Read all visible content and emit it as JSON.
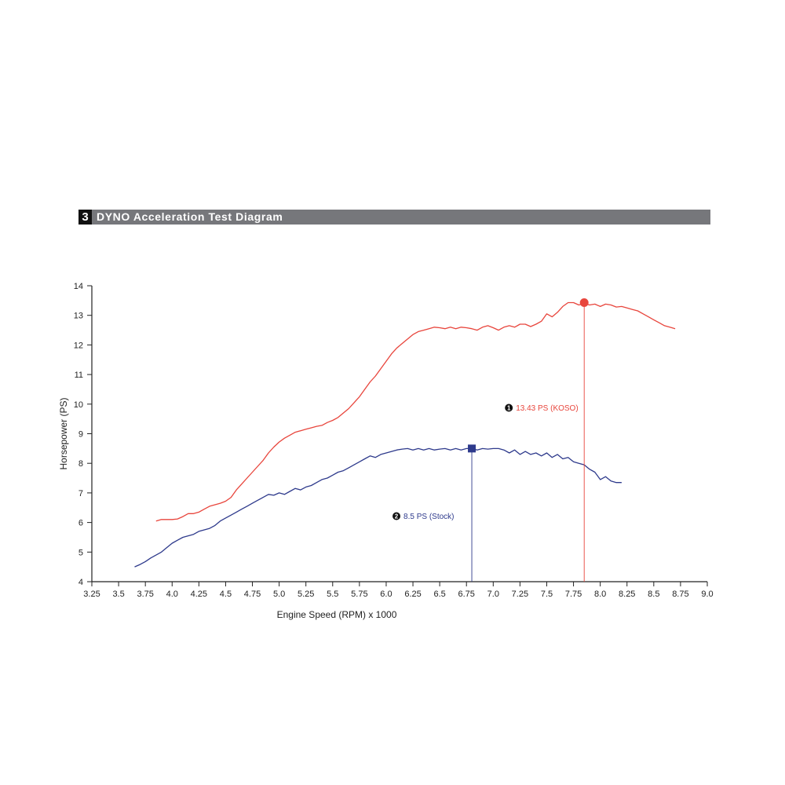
{
  "header": {
    "number": "3",
    "title": "DYNO Acceleration Test Diagram"
  },
  "chart_data": {
    "type": "line",
    "xlabel": "Engine Speed (RPM) x 1000",
    "ylabel": "Horsepower (PS)",
    "xlim": [
      3.25,
      9.0
    ],
    "ylim": [
      4,
      14
    ],
    "x_ticks": [
      "3.25",
      "3.5",
      "3.75",
      "4.0",
      "4.25",
      "4.5",
      "4.75",
      "5.0",
      "5.25",
      "5.5",
      "5.75",
      "6.0",
      "6.25",
      "6.5",
      "6.75",
      "7.0",
      "7.25",
      "7.5",
      "7.75",
      "8.0",
      "8.25",
      "8.5",
      "8.75",
      "9.0"
    ],
    "y_ticks": [
      "4",
      "5",
      "6",
      "7",
      "8",
      "9",
      "10",
      "11",
      "12",
      "13",
      "14"
    ],
    "grid": false,
    "series": [
      {
        "name": "KOSO",
        "color": "#e8453c",
        "x": [
          3.85,
          3.9,
          3.95,
          4.0,
          4.05,
          4.1,
          4.15,
          4.2,
          4.25,
          4.3,
          4.35,
          4.4,
          4.45,
          4.5,
          4.55,
          4.6,
          4.65,
          4.7,
          4.75,
          4.8,
          4.85,
          4.9,
          4.95,
          5.0,
          5.05,
          5.1,
          5.15,
          5.2,
          5.25,
          5.3,
          5.35,
          5.4,
          5.45,
          5.5,
          5.55,
          5.6,
          5.65,
          5.7,
          5.75,
          5.8,
          5.85,
          5.9,
          5.95,
          6.0,
          6.05,
          6.1,
          6.15,
          6.2,
          6.25,
          6.3,
          6.35,
          6.4,
          6.45,
          6.5,
          6.55,
          6.6,
          6.65,
          6.7,
          6.75,
          6.8,
          6.85,
          6.9,
          6.95,
          7.0,
          7.05,
          7.1,
          7.15,
          7.2,
          7.25,
          7.3,
          7.35,
          7.4,
          7.45,
          7.5,
          7.55,
          7.6,
          7.65,
          7.7,
          7.75,
          7.8,
          7.85,
          7.9,
          7.95,
          8.0,
          8.05,
          8.1,
          8.15,
          8.2,
          8.25,
          8.3,
          8.35,
          8.4,
          8.45,
          8.5,
          8.55,
          8.6,
          8.65,
          8.7
        ],
        "y": [
          6.05,
          6.1,
          6.1,
          6.1,
          6.12,
          6.2,
          6.3,
          6.3,
          6.35,
          6.45,
          6.55,
          6.6,
          6.65,
          6.72,
          6.85,
          7.1,
          7.3,
          7.5,
          7.7,
          7.9,
          8.1,
          8.35,
          8.55,
          8.72,
          8.85,
          8.95,
          9.05,
          9.1,
          9.15,
          9.2,
          9.25,
          9.28,
          9.38,
          9.45,
          9.55,
          9.7,
          9.85,
          10.05,
          10.25,
          10.5,
          10.75,
          10.95,
          11.2,
          11.45,
          11.7,
          11.9,
          12.05,
          12.2,
          12.35,
          12.45,
          12.5,
          12.55,
          12.6,
          12.58,
          12.55,
          12.6,
          12.55,
          12.6,
          12.58,
          12.55,
          12.5,
          12.6,
          12.65,
          12.58,
          12.5,
          12.6,
          12.65,
          12.6,
          12.7,
          12.7,
          12.62,
          12.7,
          12.8,
          13.05,
          12.95,
          13.1,
          13.3,
          13.43,
          13.43,
          13.35,
          13.4,
          13.35,
          13.38,
          13.3,
          13.38,
          13.35,
          13.28,
          13.3,
          13.25,
          13.2,
          13.15,
          13.05,
          12.95,
          12.85,
          12.75,
          12.65,
          12.6,
          12.55
        ]
      },
      {
        "name": "Stock",
        "color": "#2e3a8c",
        "x": [
          3.65,
          3.7,
          3.75,
          3.8,
          3.85,
          3.9,
          3.95,
          4.0,
          4.05,
          4.1,
          4.15,
          4.2,
          4.25,
          4.3,
          4.35,
          4.4,
          4.45,
          4.5,
          4.55,
          4.6,
          4.65,
          4.7,
          4.75,
          4.8,
          4.85,
          4.9,
          4.95,
          5.0,
          5.05,
          5.1,
          5.15,
          5.2,
          5.25,
          5.3,
          5.35,
          5.4,
          5.45,
          5.5,
          5.55,
          5.6,
          5.65,
          5.7,
          5.75,
          5.8,
          5.85,
          5.9,
          5.95,
          6.0,
          6.05,
          6.1,
          6.15,
          6.2,
          6.25,
          6.3,
          6.35,
          6.4,
          6.45,
          6.5,
          6.55,
          6.6,
          6.65,
          6.7,
          6.75,
          6.8,
          6.85,
          6.9,
          6.95,
          7.0,
          7.05,
          7.1,
          7.15,
          7.2,
          7.25,
          7.3,
          7.35,
          7.4,
          7.45,
          7.5,
          7.55,
          7.6,
          7.65,
          7.7,
          7.75,
          7.8,
          7.85,
          7.9,
          7.95,
          8.0,
          8.05,
          8.1,
          8.15,
          8.2
        ],
        "y": [
          4.5,
          4.58,
          4.68,
          4.8,
          4.9,
          5.0,
          5.15,
          5.3,
          5.4,
          5.5,
          5.55,
          5.6,
          5.7,
          5.75,
          5.8,
          5.9,
          6.05,
          6.15,
          6.25,
          6.35,
          6.45,
          6.55,
          6.65,
          6.75,
          6.85,
          6.95,
          6.92,
          7.0,
          6.95,
          7.05,
          7.15,
          7.1,
          7.2,
          7.25,
          7.35,
          7.45,
          7.5,
          7.6,
          7.7,
          7.75,
          7.85,
          7.95,
          8.05,
          8.15,
          8.25,
          8.2,
          8.3,
          8.35,
          8.4,
          8.45,
          8.48,
          8.5,
          8.45,
          8.5,
          8.45,
          8.5,
          8.45,
          8.48,
          8.5,
          8.45,
          8.5,
          8.45,
          8.5,
          8.5,
          8.45,
          8.5,
          8.48,
          8.5,
          8.5,
          8.45,
          8.35,
          8.45,
          8.3,
          8.4,
          8.3,
          8.35,
          8.25,
          8.35,
          8.2,
          8.3,
          8.15,
          8.2,
          8.05,
          8.0,
          7.95,
          7.8,
          7.7,
          7.45,
          7.55,
          7.4,
          7.35,
          7.35
        ]
      }
    ],
    "annotations": [
      {
        "marker": "1",
        "text": "13.43 PS (KOSO)",
        "x": 7.85,
        "y": 13.43,
        "color": "#e8453c",
        "shape": "circle"
      },
      {
        "marker": "2",
        "text": "8.5 PS (Stock)",
        "x": 6.8,
        "y": 8.5,
        "color": "#2e3a8c",
        "shape": "square"
      }
    ]
  }
}
